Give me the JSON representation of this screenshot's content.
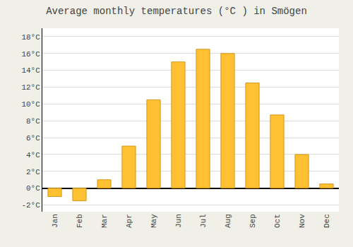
{
  "chart_data": {
    "type": "bar",
    "title": "Average monthly temperatures (°C ) in Smögen",
    "categories": [
      "Jan",
      "Feb",
      "Mar",
      "Apr",
      "May",
      "Jun",
      "Jul",
      "Aug",
      "Sep",
      "Oct",
      "Nov",
      "Dec"
    ],
    "values": [
      -1.0,
      -1.5,
      1.0,
      5.0,
      10.5,
      15.0,
      16.5,
      16.0,
      12.5,
      8.7,
      4.0,
      0.5
    ],
    "color": "#FFC132",
    "ylim": [
      -2.8,
      19.0
    ],
    "yticks": [
      {
        "value": -2,
        "label": "-2°C"
      },
      {
        "value": 0,
        "label": "0°C"
      },
      {
        "value": 2,
        "label": "2°C"
      },
      {
        "value": 4,
        "label": "4°C"
      },
      {
        "value": 6,
        "label": "6°C"
      },
      {
        "value": 8,
        "label": "8°C"
      },
      {
        "value": 10,
        "label": "10°C"
      },
      {
        "value": 12,
        "label": "12°C"
      },
      {
        "value": 14,
        "label": "14°C"
      },
      {
        "value": 16,
        "label": "16°C"
      },
      {
        "value": 18,
        "label": "18°C"
      }
    ],
    "grid": true
  }
}
